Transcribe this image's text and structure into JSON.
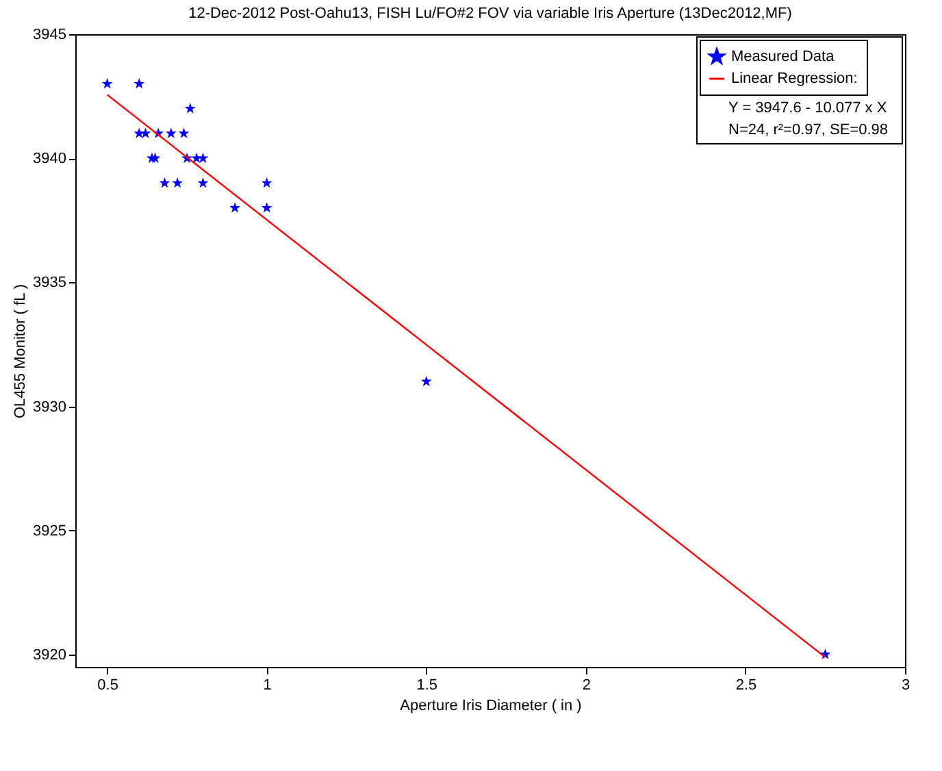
{
  "chart_data": {
    "type": "scatter",
    "title": "12-Dec-2012 Post-Oahu13, FISH Lu/FO#2 FOV via variable Iris Aperture  (13Dec2012,MF)",
    "xlabel": "Aperture Iris Diameter  ( in )",
    "ylabel": "OL455 Monitor  ( fL )",
    "series": [
      {
        "name": "Measured Data",
        "color": "#0000ff",
        "marker": "star",
        "x": [
          0.5,
          0.6,
          0.76,
          0.6,
          0.62,
          0.66,
          0.7,
          0.74,
          0.64,
          0.65,
          0.75,
          0.78,
          0.8,
          0.68,
          0.72,
          0.8,
          1.0,
          0.9,
          1.0,
          1.5,
          2.75
        ],
        "values": [
          3943,
          3943,
          3942,
          3941,
          3941,
          3941,
          3941,
          3941,
          3940,
          3940,
          3940,
          3940,
          3940,
          3939,
          3939,
          3939,
          3939,
          3938,
          3938,
          3931,
          3920
        ]
      },
      {
        "name": "Linear Regression:",
        "type": "line",
        "color": "#ff0000",
        "x": [
          0.5,
          2.75
        ],
        "values": [
          3942.56,
          3919.89
        ]
      }
    ],
    "annotations": [
      "Y = 3947.6 - 10.077 x X",
      "N=24, r²=0.97, SE=0.98"
    ],
    "xlim": [
      0.4,
      3
    ],
    "xticks": [
      0.5,
      1,
      1.5,
      2,
      2.5,
      3
    ],
    "ylim": [
      3919.5,
      3945
    ],
    "yticks": [
      3920,
      3925,
      3930,
      3935,
      3940,
      3945
    ],
    "grid": false,
    "legend": "top right"
  }
}
